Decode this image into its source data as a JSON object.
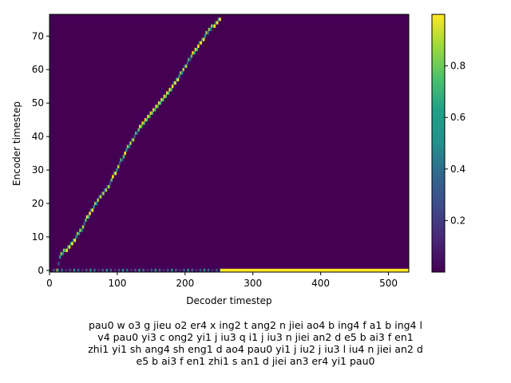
{
  "chart_data": {
    "type": "heatmap",
    "title": "",
    "xlabel": "Decoder timestep",
    "ylabel": "Encoder timestep",
    "xlim": [
      0,
      530
    ],
    "ylim": [
      -0.5,
      76.5
    ],
    "xticks": [
      0,
      100,
      200,
      300,
      400,
      500
    ],
    "yticks": [
      0,
      10,
      20,
      30,
      40,
      50,
      60,
      70
    ],
    "colorbar": {
      "ticks": [
        "0.2",
        "0.4",
        "0.6",
        "0.8"
      ],
      "min": 0.0,
      "max": 1.0,
      "colormap": "viridis"
    },
    "alignment_path": [
      [
        10,
        0
      ],
      [
        15,
        5
      ],
      [
        22,
        6
      ],
      [
        35,
        9
      ],
      [
        45,
        12
      ],
      [
        55,
        16
      ],
      [
        70,
        21
      ],
      [
        85,
        25
      ],
      [
        100,
        31
      ],
      [
        115,
        37
      ],
      [
        130,
        42
      ],
      [
        150,
        47
      ],
      [
        170,
        52
      ],
      [
        190,
        58
      ],
      [
        205,
        63
      ],
      [
        215,
        66
      ],
      [
        228,
        70
      ],
      [
        240,
        73
      ],
      [
        250,
        75
      ]
    ],
    "padding_row": {
      "encoder_step": 0,
      "from_decoder_step": 252,
      "to_decoder_step": 530,
      "value": 1.0
    },
    "caption_lines": [
      "pau0 w o3 g jieu o2 er4 x ing2 t ang2 n jiei ao4 b ing4 f a1 b ing4 l",
      "v4 pau0 yi3 c ong2 yi1 j iu3 q i1 j iu3 n jiei an2 d e5 b ai3 f en1",
      "zhi1 yi1 sh ang4 sh eng1 d ao4 pau0 yi1 j iu2 j iu3 l iu4 n jiei an2 d",
      "e5 b ai3 f en1 zhi1 s an1 d jiei an3 er4 yi1 pau0"
    ]
  }
}
